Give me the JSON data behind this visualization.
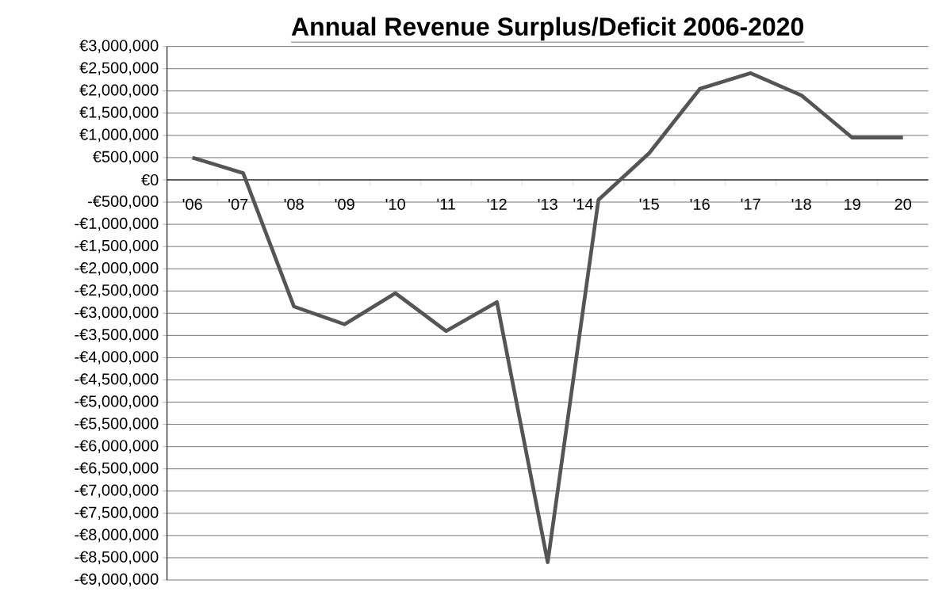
{
  "chart_data": {
    "type": "line",
    "title": "Annual Revenue Surplus/Deficit 2006-2020",
    "categories": [
      "'06",
      "'07",
      "'08",
      "'09",
      "'10",
      "'11",
      "'12",
      "'13",
      "'14",
      "'15",
      "'16",
      "'17",
      "'18",
      "19",
      "20"
    ],
    "series": [
      {
        "color": "#555555",
        "values": [
          500000,
          150000,
          -2850000,
          -3250000,
          -2550000,
          -3400000,
          -2750000,
          -8600000,
          -450000,
          600000,
          2050000,
          2400000,
          1900000,
          950000,
          950000
        ]
      }
    ],
    "ylim": [
      -9000000,
      3000000
    ],
    "yticks": [
      {
        "value": 3000000,
        "label": "€3,000,000"
      },
      {
        "value": 2500000,
        "label": "€2,500,000"
      },
      {
        "value": 2000000,
        "label": "€2,000,000"
      },
      {
        "value": 1500000,
        "label": "€1,500,000"
      },
      {
        "value": 1000000,
        "label": "€1,000,000"
      },
      {
        "value": 500000,
        "label": "€500,000"
      },
      {
        "value": 0,
        "label": "€0"
      },
      {
        "value": -500000,
        "label": "-€500,000"
      },
      {
        "value": -1000000,
        "label": "-€1,000,000"
      },
      {
        "value": -1500000,
        "label": "-€1,500,000"
      },
      {
        "value": -2000000,
        "label": "-€2,000,000"
      },
      {
        "value": -2500000,
        "label": "-€2,500,000"
      },
      {
        "value": -3000000,
        "label": "-€3,000,000"
      },
      {
        "value": -3500000,
        "label": "-€3,500,000"
      },
      {
        "value": -4000000,
        "label": "-€4,000,000"
      },
      {
        "value": -4500000,
        "label": "-€4,500,000"
      },
      {
        "value": -5000000,
        "label": "-€5,000,000"
      },
      {
        "value": -5500000,
        "label": "-€5,500,000"
      },
      {
        "value": -6000000,
        "label": "-€6,000,000"
      },
      {
        "value": -6500000,
        "label": "-€6,500,000"
      },
      {
        "value": -7000000,
        "label": "-€7,000,000"
      },
      {
        "value": -7500000,
        "label": "-€7,500,000"
      },
      {
        "value": -8000000,
        "label": "-€8,000,000"
      },
      {
        "value": -8500000,
        "label": "-€8,500,000"
      },
      {
        "value": -9000000,
        "label": "-€9,000,000"
      }
    ],
    "grid": "y",
    "marker": "none",
    "line_style": "solid"
  }
}
